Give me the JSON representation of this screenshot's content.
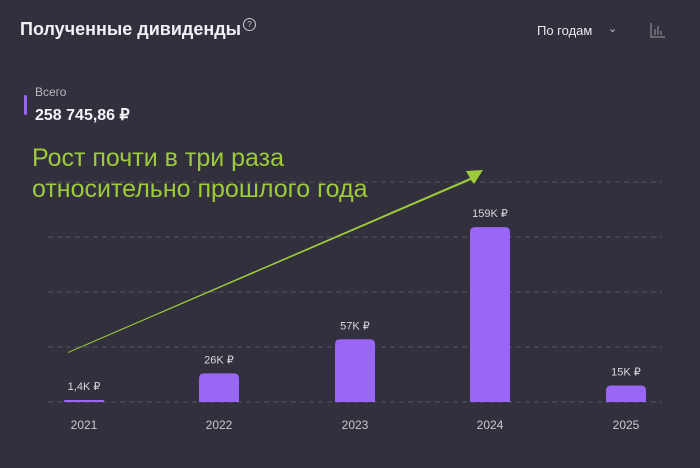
{
  "header": {
    "title": "Полученные дивиденды",
    "help_icon": "?",
    "period_select": "По годам",
    "chart_icon": "bar-chart-icon"
  },
  "summary": {
    "label": "Всего",
    "value": "258 745,86 ₽"
  },
  "annotation": {
    "line1": "Рост почти в три раза",
    "line2": "относительно прошлого года"
  },
  "colors": {
    "bar": "#9a66f5",
    "arrow": "#9dcb3a",
    "grid": "#55545f"
  },
  "chart_data": {
    "type": "bar",
    "categories": [
      "2021",
      "2022",
      "2023",
      "2024",
      "2025"
    ],
    "values": [
      1.4,
      26,
      57,
      159,
      15
    ],
    "labels": [
      "1,4K ₽",
      "26K ₽",
      "57K ₽",
      "159K ₽",
      "15K ₽"
    ],
    "unit": "K ₽",
    "ylim": [
      0,
      200
    ],
    "grid": true,
    "gridlines": [
      0,
      50,
      100,
      150,
      200
    ]
  }
}
